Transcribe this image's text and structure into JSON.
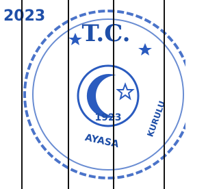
{
  "year_text": "2023",
  "seal": {
    "top": "T.C.",
    "center": "1923",
    "arc_lower": "AYASA",
    "arc_right": "KURULU"
  }
}
